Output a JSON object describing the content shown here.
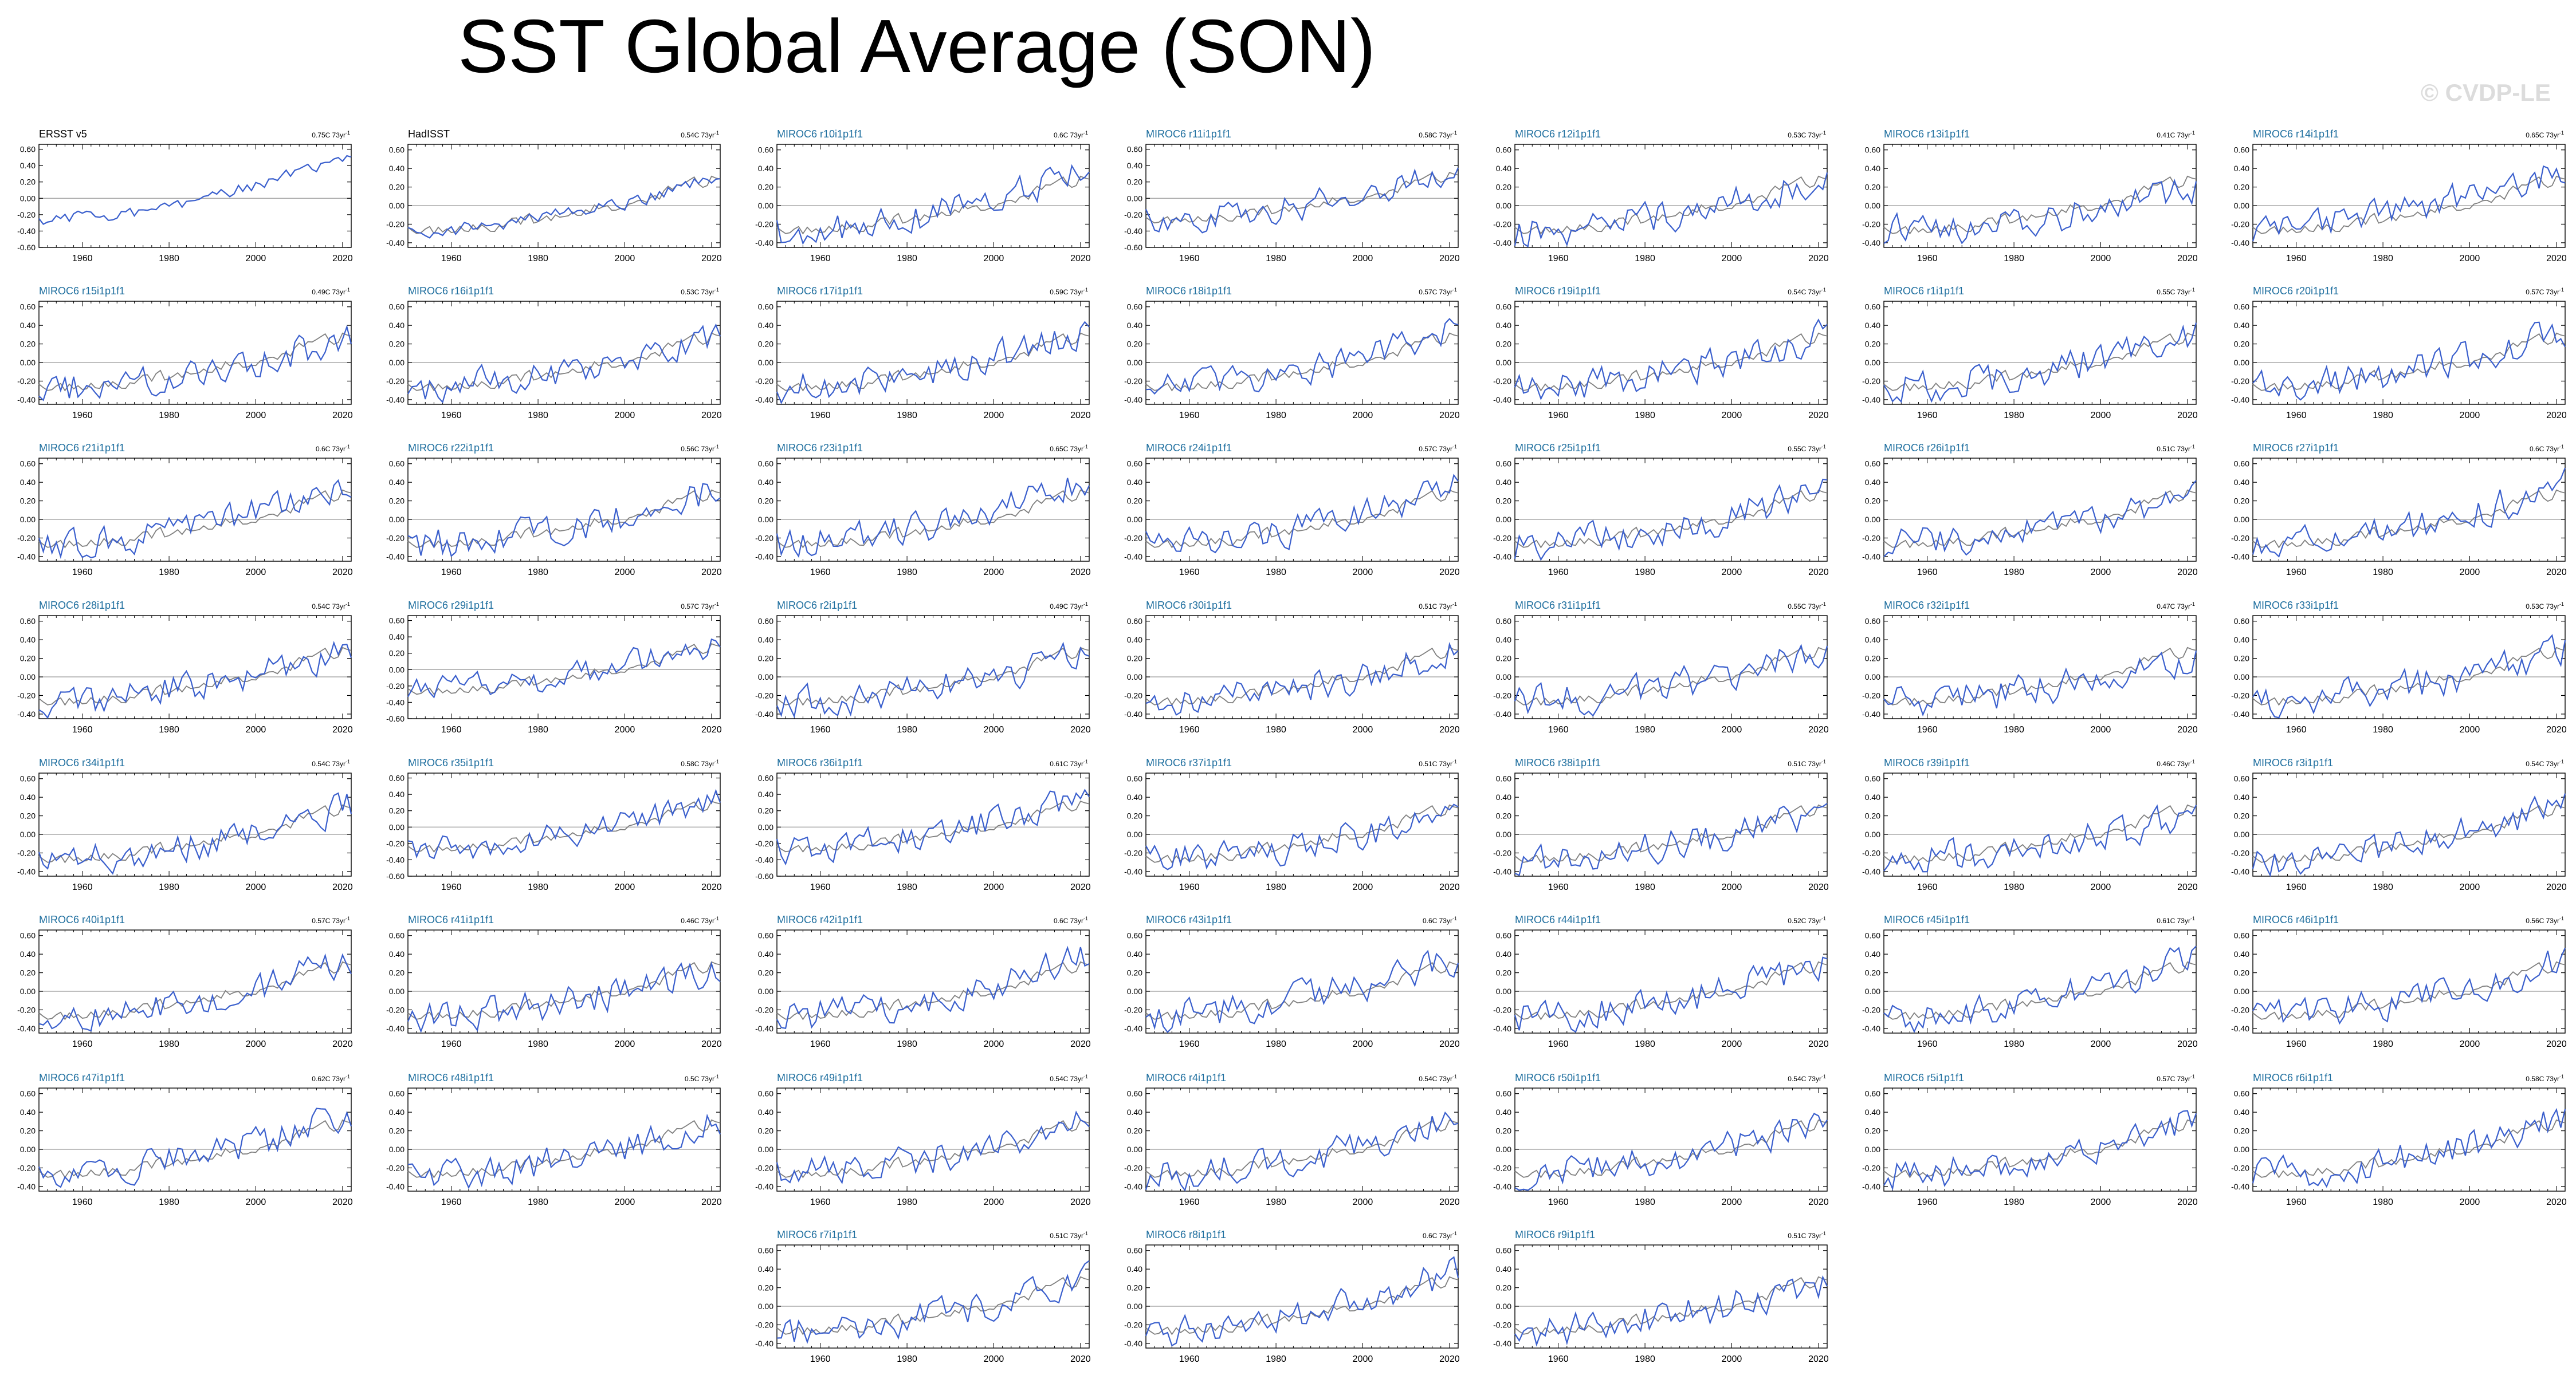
{
  "title": "SST Global Average (SON)",
  "watermark": "© CVDP-LE",
  "colors": {
    "model": "#3a5fcd",
    "observations": "#808080",
    "label_obs": "#000000",
    "label_model": "#1f6f9f",
    "zero_line": "#999999"
  },
  "chart_data": {
    "type": "line",
    "x_range": [
      1950,
      2022
    ],
    "x_ticks": [
      1960,
      1980,
      2000,
      2020
    ],
    "y_ticks_wide": [
      0.6,
      0.4,
      0.2,
      0.0,
      -0.2,
      -0.4,
      -0.6
    ],
    "y_ticks_narrow": [
      0.6,
      0.4,
      0.2,
      0.0,
      -0.2,
      -0.4
    ],
    "y_tick_labels_wide": [
      "0.60",
      "0.40",
      "0.20",
      "0.00",
      "-0.20",
      "-0.40",
      "-0.60"
    ],
    "y_tick_labels_narrow": [
      "0.60",
      "0.40",
      "0.20",
      "0.00",
      "-0.20",
      "-0.40"
    ],
    "trend_unit_suffix": "73yr",
    "trend_unit_exp": "-1",
    "panels": [
      {
        "name": "ERSST v5",
        "trend": "0.75C",
        "obs": true,
        "wide": true,
        "seed": 1
      },
      {
        "name": "HadISST",
        "trend": "0.54C",
        "obs": true,
        "wide": false,
        "seed": 2
      },
      {
        "name": "MIROC6 r10i1p1f1",
        "trend": "0.6C",
        "wide": false,
        "seed": 3
      },
      {
        "name": "MIROC6 r11i1p1f1",
        "trend": "0.58C",
        "wide": true,
        "seed": 4
      },
      {
        "name": "MIROC6 r12i1p1f1",
        "trend": "0.53C",
        "wide": false,
        "seed": 5
      },
      {
        "name": "MIROC6 r13i1p1f1",
        "trend": "0.41C",
        "wide": false,
        "seed": 6
      },
      {
        "name": "MIROC6 r14i1p1f1",
        "trend": "0.65C",
        "wide": false,
        "seed": 7
      },
      {
        "name": "MIROC6 r15i1p1f1",
        "trend": "0.49C",
        "wide": false,
        "seed": 8
      },
      {
        "name": "MIROC6 r16i1p1f1",
        "trend": "0.53C",
        "wide": false,
        "seed": 9
      },
      {
        "name": "MIROC6 r17i1p1f1",
        "trend": "0.59C",
        "wide": false,
        "seed": 10
      },
      {
        "name": "MIROC6 r18i1p1f1",
        "trend": "0.57C",
        "wide": false,
        "seed": 11
      },
      {
        "name": "MIROC6 r19i1p1f1",
        "trend": "0.54C",
        "wide": false,
        "seed": 12
      },
      {
        "name": "MIROC6 r1i1p1f1",
        "trend": "0.55C",
        "wide": false,
        "seed": 13
      },
      {
        "name": "MIROC6 r20i1p1f1",
        "trend": "0.57C",
        "wide": false,
        "seed": 14
      },
      {
        "name": "MIROC6 r21i1p1f1",
        "trend": "0.6C",
        "wide": false,
        "seed": 15
      },
      {
        "name": "MIROC6 r22i1p1f1",
        "trend": "0.56C",
        "wide": false,
        "seed": 16
      },
      {
        "name": "MIROC6 r23i1p1f1",
        "trend": "0.65C",
        "wide": false,
        "seed": 17
      },
      {
        "name": "MIROC6 r24i1p1f1",
        "trend": "0.57C",
        "wide": false,
        "seed": 18
      },
      {
        "name": "MIROC6 r25i1p1f1",
        "trend": "0.55C",
        "wide": false,
        "seed": 19
      },
      {
        "name": "MIROC6 r26i1p1f1",
        "trend": "0.51C",
        "wide": false,
        "seed": 20
      },
      {
        "name": "MIROC6 r27i1p1f1",
        "trend": "0.6C",
        "wide": false,
        "seed": 21
      },
      {
        "name": "MIROC6 r28i1p1f1",
        "trend": "0.54C",
        "wide": false,
        "seed": 22
      },
      {
        "name": "MIROC6 r29i1p1f1",
        "trend": "0.57C",
        "wide": true,
        "seed": 23
      },
      {
        "name": "MIROC6 r2i1p1f1",
        "trend": "0.49C",
        "wide": false,
        "seed": 24
      },
      {
        "name": "MIROC6 r30i1p1f1",
        "trend": "0.51C",
        "wide": false,
        "seed": 25
      },
      {
        "name": "MIROC6 r31i1p1f1",
        "trend": "0.55C",
        "wide": false,
        "seed": 26
      },
      {
        "name": "MIROC6 r32i1p1f1",
        "trend": "0.47C",
        "wide": false,
        "seed": 27
      },
      {
        "name": "MIROC6 r33i1p1f1",
        "trend": "0.53C",
        "wide": false,
        "seed": 28
      },
      {
        "name": "MIROC6 r34i1p1f1",
        "trend": "0.54C",
        "wide": false,
        "seed": 29
      },
      {
        "name": "MIROC6 r35i1p1f1",
        "trend": "0.58C",
        "wide": true,
        "seed": 30
      },
      {
        "name": "MIROC6 r36i1p1f1",
        "trend": "0.61C",
        "wide": true,
        "seed": 31
      },
      {
        "name": "MIROC6 r37i1p1f1",
        "trend": "0.51C",
        "wide": false,
        "seed": 32
      },
      {
        "name": "MIROC6 r38i1p1f1",
        "trend": "0.51C",
        "wide": false,
        "seed": 33
      },
      {
        "name": "MIROC6 r39i1p1f1",
        "trend": "0.46C",
        "wide": false,
        "seed": 34
      },
      {
        "name": "MIROC6 r3i1p1f1",
        "trend": "0.54C",
        "wide": false,
        "seed": 35
      },
      {
        "name": "MIROC6 r40i1p1f1",
        "trend": "0.57C",
        "wide": false,
        "seed": 36
      },
      {
        "name": "MIROC6 r41i1p1f1",
        "trend": "0.46C",
        "wide": false,
        "seed": 37
      },
      {
        "name": "MIROC6 r42i1p1f1",
        "trend": "0.6C",
        "wide": false,
        "seed": 38
      },
      {
        "name": "MIROC6 r43i1p1f1",
        "trend": "0.6C",
        "wide": false,
        "seed": 39
      },
      {
        "name": "MIROC6 r44i1p1f1",
        "trend": "0.52C",
        "wide": false,
        "seed": 40
      },
      {
        "name": "MIROC6 r45i1p1f1",
        "trend": "0.61C",
        "wide": false,
        "seed": 41
      },
      {
        "name": "MIROC6 r46i1p1f1",
        "trend": "0.56C",
        "wide": false,
        "seed": 42
      },
      {
        "name": "MIROC6 r47i1p1f1",
        "trend": "0.62C",
        "wide": false,
        "seed": 43
      },
      {
        "name": "MIROC6 r48i1p1f1",
        "trend": "0.5C",
        "wide": false,
        "seed": 44
      },
      {
        "name": "MIROC6 r49i1p1f1",
        "trend": "0.54C",
        "wide": false,
        "seed": 45
      },
      {
        "name": "MIROC6 r4i1p1f1",
        "trend": "0.54C",
        "wide": false,
        "seed": 46
      },
      {
        "name": "MIROC6 r50i1p1f1",
        "trend": "0.54C",
        "wide": false,
        "seed": 47
      },
      {
        "name": "MIROC6 r5i1p1f1",
        "trend": "0.57C",
        "wide": false,
        "seed": 48
      },
      {
        "name": "MIROC6 r6i1p1f1",
        "trend": "0.58C",
        "wide": false,
        "seed": 49
      },
      {
        "name": "MIROC6 r7i1p1f1",
        "trend": "0.51C",
        "wide": false,
        "seed": 50
      },
      {
        "name": "MIROC6 r8i1p1f1",
        "trend": "0.6C",
        "wide": false,
        "seed": 51
      },
      {
        "name": "MIROC6 r9i1p1f1",
        "trend": "0.51C",
        "wide": false,
        "seed": 52
      }
    ]
  }
}
